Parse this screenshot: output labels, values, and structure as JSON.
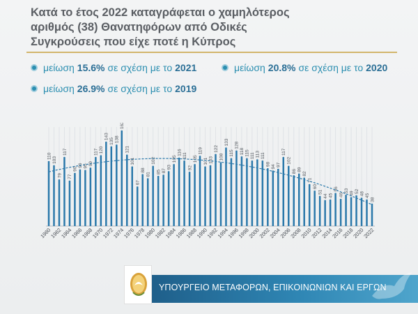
{
  "title": {
    "line1": "Κατά το έτος 2022 καταγράφεται ο χαμηλότερος",
    "line2": "αριθμός (38) Θανατηφόρων από Οδικές",
    "line3": "Συγκρούσεις που είχε ποτέ η Κύπρος"
  },
  "bullets": [
    {
      "prefix": "μείωση",
      "value": "15.6%",
      "middle": "σε σχέση με το",
      "year": "2021"
    },
    {
      "prefix": "μείωση",
      "value": "20.8%",
      "middle": "σε σχέση με το",
      "year": "2020"
    },
    {
      "prefix": "μείωση",
      "value": "26.9%",
      "middle": "σε σχέση με το",
      "year": "2019"
    }
  ],
  "colors": {
    "bar": "#2a78aa",
    "trend": "#2a78aa",
    "accent": "#2b8eb0",
    "gold_rule": "#d2b56a"
  },
  "chart_data": {
    "type": "bar",
    "x": [
      1960,
      1961,
      1962,
      1963,
      1964,
      1965,
      1966,
      1967,
      1968,
      1969,
      1970,
      1971,
      1972,
      1973,
      1974,
      1975,
      1976,
      1977,
      1978,
      1979,
      1980,
      1981,
      1982,
      1983,
      1984,
      1985,
      1986,
      1987,
      1988,
      1989,
      1990,
      1991,
      1992,
      1993,
      1994,
      1995,
      1996,
      1997,
      1998,
      1999,
      2000,
      2001,
      2002,
      2003,
      2004,
      2005,
      2006,
      2007,
      2008,
      2009,
      2010,
      2011,
      2012,
      2013,
      2014,
      2015,
      2016,
      2017,
      2018,
      2019,
      2020,
      2021,
      2022
    ],
    "values": [
      110,
      103,
      79,
      117,
      77,
      90,
      96,
      95,
      99,
      117,
      120,
      143,
      135,
      138,
      162,
      121,
      101,
      67,
      88,
      81,
      102,
      85,
      87,
      93,
      105,
      116,
      111,
      92,
      105,
      119,
      101,
      103,
      122,
      108,
      133,
      115,
      128,
      118,
      115,
      111,
      113,
      111,
      98,
      94,
      97,
      117,
      102,
      86,
      89,
      82,
      71,
      60,
      51,
      44,
      45,
      56,
      46,
      53,
      49,
      52,
      48,
      45,
      38
    ],
    "x_tick_labels": [
      "1960",
      "1962",
      "1964",
      "1966",
      "1968",
      "1970",
      "1972",
      "1974",
      "1976",
      "1978",
      "1980",
      "1982",
      "1984",
      "1986",
      "1988",
      "1990",
      "1992",
      "1994",
      "1996",
      "1998",
      "2000",
      "2002",
      "2004",
      "2006",
      "2008",
      "2010",
      "2012",
      "2014",
      "2016",
      "2018",
      "2020",
      "2022"
    ],
    "trendline": "dashed polynomial",
    "ylim": [
      0,
      175
    ],
    "title": "",
    "xlabel": "",
    "ylabel": "",
    "grid": "vertical"
  },
  "footer": {
    "ministry": "ΥΠΟΥΡΓΕΙΟ ΜΕΤΑΦΟΡΩΝ, ΕΠΙΚΟΙΝΩΝΙΩΝ ΚΑΙ ΕΡΓΩΝ"
  }
}
